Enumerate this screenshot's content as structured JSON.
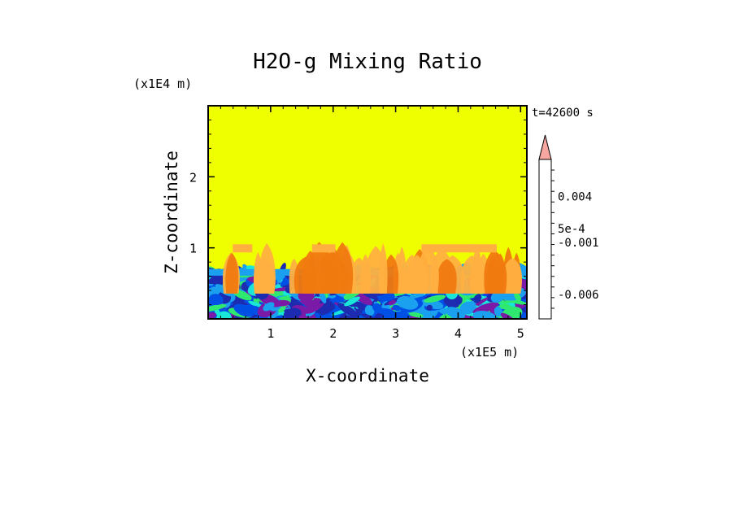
{
  "chart_data": {
    "type": "heatmap",
    "title": "H2O-g Mixing Ratio",
    "xlabel": "X-coordinate",
    "ylabel": "Z-coordinate",
    "x_scale_label": "(x1E5 m)",
    "y_scale_label": "(x1E4 m)",
    "time_label": "t=42600 s",
    "xlim": [
      0,
      5.1
    ],
    "ylim": [
      0,
      3
    ],
    "x_ticks": [
      "1",
      "2",
      "3",
      "4",
      "5"
    ],
    "x_tick_values": [
      1,
      2,
      3,
      4,
      5
    ],
    "y_ticks": [
      "1",
      "2"
    ],
    "y_tick_values": [
      1,
      2
    ],
    "field": {
      "background_level": 0,
      "boundary_layer_top": 0.7,
      "plume_top": 1.05
    },
    "colorbar": {
      "levels_colors": [
        "#ee22aa",
        "#bb22bb",
        "#7a1aa6",
        "#1c2bb0",
        "#0050e6",
        "#1aa0ee",
        "#19e6d6",
        "#2ee870",
        "#e8e800",
        "#f0c020",
        "#f5a020",
        "#ee6b10",
        "#dd1818",
        "#f07070",
        "#f7a7a0"
      ],
      "labels": [
        {
          "text": "0.004",
          "level_index": 11.5
        },
        {
          "text": "5e-4",
          "level_index": 8.5
        },
        {
          "text": "-0.001",
          "level_index": 7.2
        },
        {
          "text": "-0.006",
          "level_index": 2.3
        }
      ],
      "extend": "max"
    },
    "colors": {
      "background": "#f0ff00",
      "plume_light": "#ffb040",
      "plume_dark": "#f07a10"
    }
  }
}
